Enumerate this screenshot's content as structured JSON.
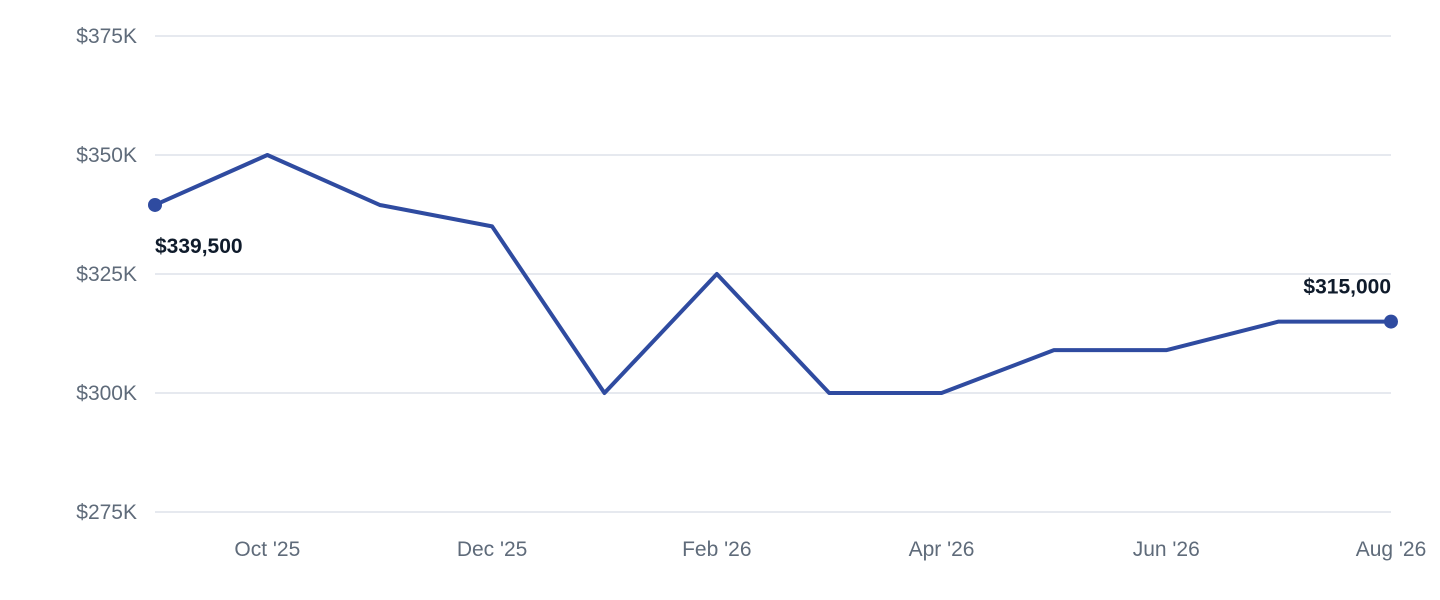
{
  "chart_data": {
    "type": "line",
    "x": [
      "Sep '25",
      "Oct '25",
      "Nov '25",
      "Dec '25",
      "Jan '26",
      "Feb '26",
      "Mar '26",
      "Apr '26",
      "May '26",
      "Jun '26",
      "Jul '26",
      "Aug '26"
    ],
    "x_tick_labels": [
      "Oct '25",
      "Dec '25",
      "Feb '26",
      "Apr '26",
      "Jun '26",
      "Aug '26"
    ],
    "series": [
      {
        "values": [
          339500,
          350000,
          339500,
          335000,
          300000,
          325000,
          300000,
          300000,
          309000,
          309000,
          315000,
          315000
        ]
      }
    ],
    "y_tick_labels": [
      "$275K",
      "$300K",
      "$325K",
      "$350K",
      "$375K"
    ],
    "y_ticks": [
      275000,
      300000,
      325000,
      350000,
      375000
    ],
    "ylim": [
      275000,
      375000
    ],
    "grid": true,
    "data_labels": [
      {
        "index": 0,
        "text": "$339,500"
      },
      {
        "index": 11,
        "text": "$315,000"
      }
    ],
    "color": "#2f4ba0"
  }
}
